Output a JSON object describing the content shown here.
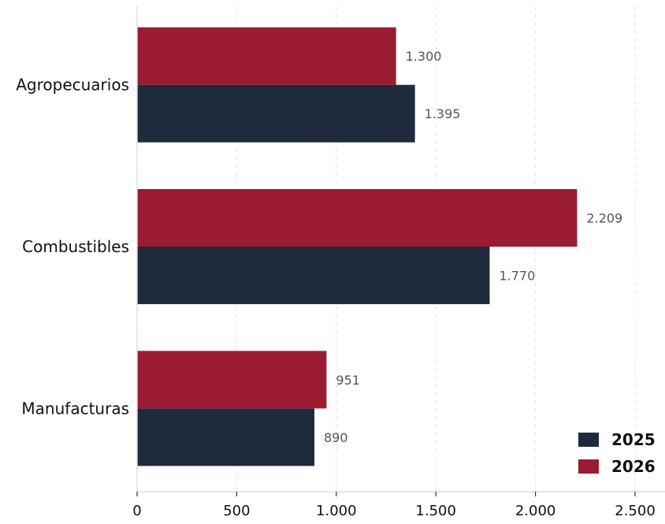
{
  "chart_data": {
    "type": "bar",
    "orientation": "horizontal",
    "categories": [
      "Agropecuarios",
      "Combustibles",
      "Manufacturas"
    ],
    "series": [
      {
        "name": "2025",
        "values": [
          1395,
          1770,
          890
        ],
        "labels": [
          "1.395",
          "1.770",
          "890"
        ],
        "color": "#1f2a3c"
      },
      {
        "name": "2026",
        "values": [
          1300,
          2209,
          951
        ],
        "labels": [
          "1.300",
          "2.209",
          "951"
        ],
        "color": "#9b1b30"
      }
    ],
    "xlim": [
      0,
      2650
    ],
    "xticks": [
      0,
      500,
      1000,
      1500,
      2000,
      2500
    ],
    "xtick_labels": [
      "0",
      "500",
      "1.000",
      "1.500",
      "2.000",
      "2.500"
    ],
    "grid": "vertical-dashed",
    "legend_position": "bottom-right"
  }
}
